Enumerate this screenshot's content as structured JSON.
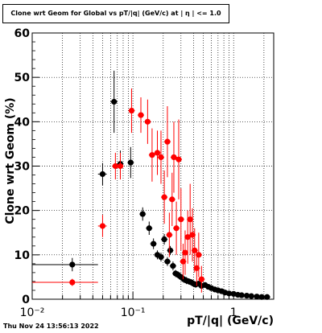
{
  "title": "Clone wrt Geom for Global vs pT/|q| (GeV/c) at | η | <= 1.0",
  "timestamp": "Thu Nov 24 13:56:13 2022",
  "chart_data": {
    "type": "scatter",
    "title": "Clone wrt Geom for Global vs pT/|q| (GeV/c) at | η | <= 1.0",
    "xlabel": "pT/|q| (GeV/c)",
    "ylabel": "Clone wrt Geom (%)",
    "xscale": "log",
    "xlim": [
      0.01,
      2.5
    ],
    "ylim": [
      0,
      60
    ],
    "y_ticks": [
      0,
      10,
      20,
      30,
      40,
      50,
      60
    ],
    "x_tick_labels": [
      "10⁻²",
      "10⁻¹",
      "1"
    ],
    "grid": true,
    "series": [
      {
        "color": "#000000",
        "points": [
          {
            "x": 0.025,
            "y": 7.8,
            "err": 1.5,
            "xlo": 0.01,
            "xhi": 0.045
          },
          {
            "x": 0.05,
            "y": 28.2,
            "err": 2.5,
            "xlo": 0.045,
            "xhi": 0.055
          },
          {
            "x": 0.065,
            "y": 44.5,
            "err": 7.0,
            "xlo": 0.06,
            "xhi": 0.07
          },
          {
            "x": 0.075,
            "y": 30.5,
            "err": 3.0
          },
          {
            "x": 0.095,
            "y": 30.8,
            "err": 3.5
          },
          {
            "x": 0.125,
            "y": 19.2,
            "err": 1.5
          },
          {
            "x": 0.145,
            "y": 16.0,
            "err": 1.5
          },
          {
            "x": 0.16,
            "y": 12.5,
            "err": 1.2
          },
          {
            "x": 0.175,
            "y": 10.0,
            "err": 1.0
          },
          {
            "x": 0.19,
            "y": 9.5,
            "err": 1.0
          },
          {
            "x": 0.205,
            "y": 13.5,
            "err": 1.2
          },
          {
            "x": 0.22,
            "y": 8.5,
            "err": 1.0
          },
          {
            "x": 0.235,
            "y": 11.0,
            "err": 1.0
          },
          {
            "x": 0.25,
            "y": 7.5,
            "err": 1.0
          },
          {
            "x": 0.265,
            "y": 5.8,
            "err": 0.8
          },
          {
            "x": 0.28,
            "y": 5.5,
            "err": 0.8
          },
          {
            "x": 0.3,
            "y": 5.0,
            "err": 0.8
          },
          {
            "x": 0.32,
            "y": 4.5,
            "err": 0.8
          },
          {
            "x": 0.34,
            "y": 4.2,
            "err": 0.8
          },
          {
            "x": 0.36,
            "y": 4.0,
            "err": 0.7
          },
          {
            "x": 0.38,
            "y": 3.8,
            "err": 0.7
          },
          {
            "x": 0.4,
            "y": 3.5,
            "err": 0.7
          },
          {
            "x": 0.42,
            "y": 3.3,
            "err": 0.7
          },
          {
            "x": 0.45,
            "y": 3.5,
            "err": 0.7
          },
          {
            "x": 0.48,
            "y": 3.0,
            "err": 0.6
          },
          {
            "x": 0.52,
            "y": 3.2,
            "err": 0.6
          },
          {
            "x": 0.56,
            "y": 2.8,
            "err": 0.6
          },
          {
            "x": 0.6,
            "y": 2.5,
            "err": 0.5
          },
          {
            "x": 0.65,
            "y": 2.2,
            "err": 0.5
          },
          {
            "x": 0.7,
            "y": 2.0,
            "err": 0.4
          },
          {
            "x": 0.76,
            "y": 1.8,
            "err": 0.4
          },
          {
            "x": 0.82,
            "y": 1.5,
            "err": 0.3
          },
          {
            "x": 0.9,
            "y": 1.3,
            "err": 0.3
          },
          {
            "x": 1.0,
            "y": 1.2,
            "err": 0.3
          },
          {
            "x": 1.1,
            "y": 1.0,
            "err": 0.2
          },
          {
            "x": 1.2,
            "y": 0.9,
            "err": 0.2
          },
          {
            "x": 1.35,
            "y": 0.8,
            "err": 0.2
          },
          {
            "x": 1.5,
            "y": 0.7,
            "err": 0.2
          },
          {
            "x": 1.7,
            "y": 0.6,
            "err": 0.2
          },
          {
            "x": 1.9,
            "y": 0.5,
            "err": 0.2
          },
          {
            "x": 2.15,
            "y": 0.5,
            "err": 0.2
          }
        ]
      },
      {
        "color": "#ff0000",
        "points": [
          {
            "x": 0.025,
            "y": 3.8,
            "err": 0.8,
            "xlo": 0.01,
            "xhi": 0.045
          },
          {
            "x": 0.05,
            "y": 16.5,
            "err": 2.5,
            "xlo": 0.045,
            "xhi": 0.055
          },
          {
            "x": 0.067,
            "y": 30.0,
            "err": 3.0
          },
          {
            "x": 0.075,
            "y": 30.0,
            "err": 3.0
          },
          {
            "x": 0.097,
            "y": 42.5,
            "err": 5.0
          },
          {
            "x": 0.12,
            "y": 41.5,
            "err": 4.0
          },
          {
            "x": 0.14,
            "y": 40.0,
            "err": 5.0
          },
          {
            "x": 0.155,
            "y": 32.5,
            "err": 6.0
          },
          {
            "x": 0.175,
            "y": 33.0,
            "err": 5.0
          },
          {
            "x": 0.19,
            "y": 32.0,
            "err": 6.0
          },
          {
            "x": 0.205,
            "y": 23.0,
            "err": 6.0
          },
          {
            "x": 0.22,
            "y": 35.5,
            "err": 8.0
          },
          {
            "x": 0.23,
            "y": 14.5,
            "err": 5.0
          },
          {
            "x": 0.245,
            "y": 22.5,
            "err": 6.0
          },
          {
            "x": 0.255,
            "y": 32.0,
            "err": 8.0
          },
          {
            "x": 0.27,
            "y": 16.0,
            "err": 6.0
          },
          {
            "x": 0.285,
            "y": 31.5,
            "err": 9.0
          },
          {
            "x": 0.3,
            "y": 18.0,
            "err": 7.0
          },
          {
            "x": 0.315,
            "y": 8.5,
            "err": 4.0
          },
          {
            "x": 0.33,
            "y": 10.5,
            "err": 5.0
          },
          {
            "x": 0.35,
            "y": 14.0,
            "err": 6.0
          },
          {
            "x": 0.37,
            "y": 18.0,
            "err": 8.0
          },
          {
            "x": 0.39,
            "y": 14.5,
            "err": 6.0
          },
          {
            "x": 0.41,
            "y": 11.0,
            "err": 5.0
          },
          {
            "x": 0.43,
            "y": 7.0,
            "err": 4.0
          },
          {
            "x": 0.45,
            "y": 10.0,
            "err": 5.0
          },
          {
            "x": 0.48,
            "y": 4.5,
            "err": 3.0
          }
        ]
      }
    ]
  }
}
